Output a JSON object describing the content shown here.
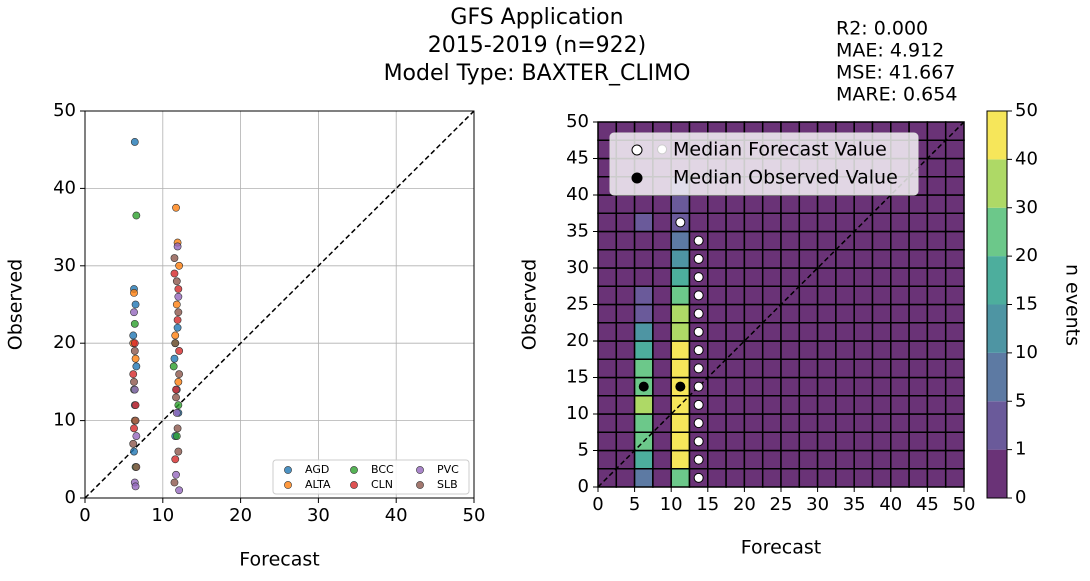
{
  "title": [
    "GFS Application",
    "2015-2019 (n=922)",
    "Model Type: BAXTER_CLIMO"
  ],
  "stats": [
    "R2: 0.000",
    "MAE: 4.912",
    "MSE: 41.667",
    "MARE: 0.654"
  ],
  "chart_data": [
    {
      "type": "scatter",
      "x_label": "Forecast",
      "y_label": "Observed",
      "xlim": [
        0,
        50
      ],
      "ylim": [
        0,
        50
      ],
      "xticks": [
        0,
        10,
        20,
        30,
        40,
        50
      ],
      "yticks": [
        0,
        10,
        20,
        30,
        40,
        50
      ],
      "grid": true,
      "legend": "lower right",
      "series": [
        {
          "name": "AGD",
          "color": "#1f77b4",
          "x": [
            6.4,
            6.5,
            6.3,
            6.2,
            6.6,
            11.5,
            11.8,
            12.0,
            11.6,
            6.4,
            11.9,
            6.3
          ],
          "y": [
            46,
            25,
            27,
            21,
            17,
            18,
            14,
            11,
            8,
            12,
            22,
            6
          ]
        },
        {
          "name": "ALTA",
          "color": "#ff7f0e",
          "x": [
            6.3,
            6.2,
            6.5,
            11.7,
            11.9,
            12.1,
            11.6,
            6.4,
            11.8,
            12.0
          ],
          "y": [
            26.5,
            20,
            18,
            37.5,
            33,
            30,
            21,
            10,
            25,
            15
          ]
        },
        {
          "name": "BCC",
          "color": "#2ca02c",
          "x": [
            6.6,
            6.4,
            11.4,
            11.6,
            6.3,
            12.0,
            11.8,
            6.5
          ],
          "y": [
            36.5,
            22.5,
            17,
            20,
            14,
            12,
            8,
            4
          ]
        },
        {
          "name": "CLN",
          "color": "#d62728",
          "x": [
            6.4,
            6.2,
            11.5,
            11.9,
            12.1,
            6.5,
            11.7,
            6.3,
            11.6,
            12.0
          ],
          "y": [
            20,
            16,
            29,
            23,
            19,
            12,
            14,
            9,
            5,
            27
          ]
        },
        {
          "name": "PVC",
          "color": "#9467bd",
          "x": [
            6.4,
            6.5,
            6.3,
            11.9,
            12.0,
            11.7,
            6.6,
            12.1,
            11.8,
            6.4
          ],
          "y": [
            2,
            1.5,
            24,
            32.5,
            26,
            3,
            8,
            1,
            11,
            14
          ]
        },
        {
          "name": "SLB",
          "color": "#8c564b",
          "x": [
            6.4,
            6.3,
            6.5,
            11.5,
            11.8,
            12.0,
            11.6,
            12.1,
            11.7,
            6.2,
            11.9,
            6.6,
            11.5,
            12.0
          ],
          "y": [
            19,
            15,
            10,
            31,
            28,
            24,
            20,
            16,
            13,
            7,
            9,
            4,
            2,
            6
          ]
        }
      ]
    },
    {
      "type": "heatmap",
      "x_label": "Forecast",
      "y_label": "Observed",
      "colorbar_label": "n events",
      "xlim": [
        0,
        50
      ],
      "ylim": [
        0,
        50
      ],
      "xticks": [
        0,
        5,
        10,
        15,
        20,
        25,
        30,
        35,
        40,
        45,
        50
      ],
      "yticks": [
        0,
        5,
        10,
        15,
        20,
        25,
        30,
        35,
        40,
        45,
        50
      ],
      "levels": [
        0,
        1,
        5,
        10,
        15,
        20,
        30,
        40,
        50
      ],
      "colors": [
        "#6a3377",
        "#6a5a9a",
        "#5d7aa3",
        "#4e95a3",
        "#4dae9d",
        "#6cc88a",
        "#aed966",
        "#f6e65a"
      ],
      "counts": [
        [
          0,
          0,
          7,
          0,
          22,
          0,
          0,
          0,
          0,
          0,
          0,
          0,
          0,
          0,
          0,
          0,
          0,
          0,
          0,
          0
        ],
        [
          0,
          0,
          17,
          0,
          45,
          0,
          0,
          0,
          0,
          0,
          0,
          0,
          0,
          0,
          0,
          0,
          0,
          0,
          0,
          0
        ],
        [
          0,
          0,
          25,
          0,
          45,
          0,
          0,
          0,
          0,
          0,
          0,
          0,
          0,
          0,
          0,
          0,
          0,
          0,
          0,
          0
        ],
        [
          0,
          0,
          25,
          0,
          45,
          0,
          0,
          0,
          0,
          0,
          0,
          0,
          0,
          0,
          0,
          0,
          0,
          0,
          0,
          0
        ],
        [
          0,
          0,
          32,
          0,
          45,
          0,
          0,
          0,
          0,
          0,
          0,
          0,
          0,
          0,
          0,
          0,
          0,
          0,
          0,
          0
        ],
        [
          0,
          0,
          25,
          0,
          45,
          0,
          0,
          0,
          0,
          0,
          0,
          0,
          0,
          0,
          0,
          0,
          0,
          0,
          0,
          0
        ],
        [
          0,
          0,
          22,
          0,
          45,
          0,
          0,
          0,
          0,
          0,
          0,
          0,
          0,
          0,
          0,
          0,
          0,
          0,
          0,
          0
        ],
        [
          0,
          0,
          17,
          0,
          42,
          0,
          0,
          0,
          0,
          0,
          0,
          0,
          0,
          0,
          0,
          0,
          0,
          0,
          0,
          0
        ],
        [
          0,
          0,
          12,
          0,
          32,
          0,
          0,
          0,
          0,
          0,
          0,
          0,
          0,
          0,
          0,
          0,
          0,
          0,
          0,
          0
        ],
        [
          0,
          0,
          4,
          0,
          32,
          0,
          0,
          0,
          0,
          0,
          0,
          0,
          0,
          0,
          0,
          0,
          0,
          0,
          0,
          0
        ],
        [
          0,
          0,
          3,
          0,
          22,
          0,
          0,
          0,
          0,
          0,
          0,
          0,
          0,
          0,
          0,
          0,
          0,
          0,
          0,
          0
        ],
        [
          0,
          0,
          0,
          0,
          17,
          0,
          0,
          0,
          0,
          0,
          0,
          0,
          0,
          0,
          0,
          0,
          0,
          0,
          0,
          0
        ],
        [
          0,
          0,
          0,
          0,
          12,
          0,
          0,
          0,
          0,
          0,
          0,
          0,
          0,
          0,
          0,
          0,
          0,
          0,
          0,
          0
        ],
        [
          0,
          0,
          0,
          0,
          7,
          0,
          0,
          0,
          0,
          0,
          0,
          0,
          0,
          0,
          0,
          0,
          0,
          0,
          0,
          0
        ],
        [
          0,
          0,
          3,
          0,
          2,
          0,
          0,
          0,
          0,
          0,
          0,
          0,
          0,
          0,
          0,
          0,
          0,
          0,
          0,
          0
        ],
        [
          0,
          0,
          0,
          0,
          3,
          0,
          0,
          0,
          0,
          0,
          0,
          0,
          0,
          0,
          0,
          0,
          0,
          0,
          0,
          0
        ],
        [
          0,
          0,
          0,
          0,
          2,
          0,
          0,
          0,
          0,
          0,
          0,
          0,
          0,
          0,
          0,
          0,
          0,
          0,
          0,
          0
        ],
        [
          0,
          0,
          0,
          0,
          0,
          0,
          0,
          0,
          0,
          0,
          0,
          0,
          0,
          0,
          0,
          0,
          0,
          0,
          0,
          0
        ],
        [
          0,
          0,
          0,
          0,
          0,
          0,
          0,
          0,
          0,
          0,
          0,
          0,
          0,
          0,
          0,
          0,
          0,
          0,
          0,
          0
        ],
        [
          0,
          0,
          0,
          0,
          0,
          0,
          0,
          0,
          0,
          0,
          0,
          0,
          0,
          0,
          0,
          0,
          0,
          0,
          0,
          0
        ]
      ],
      "series": [
        {
          "name": "Median Forecast Value",
          "color": "#ffffff",
          "x": [
            13.75,
            13.75,
            13.75,
            13.75,
            13.75,
            13.75,
            13.75,
            13.75,
            13.75,
            13.75,
            13.75,
            13.75,
            13.75,
            13.75,
            11.25,
            8.75
          ],
          "y": [
            1.25,
            3.75,
            6.25,
            8.75,
            11.25,
            13.75,
            16.25,
            18.75,
            21.25,
            23.75,
            26.25,
            28.75,
            31.25,
            33.75,
            36.25,
            46.25
          ]
        },
        {
          "name": "Median Observed Value",
          "color": "#000000",
          "x": [
            6.25,
            11.25
          ],
          "y": [
            13.75,
            13.75
          ]
        }
      ]
    }
  ]
}
